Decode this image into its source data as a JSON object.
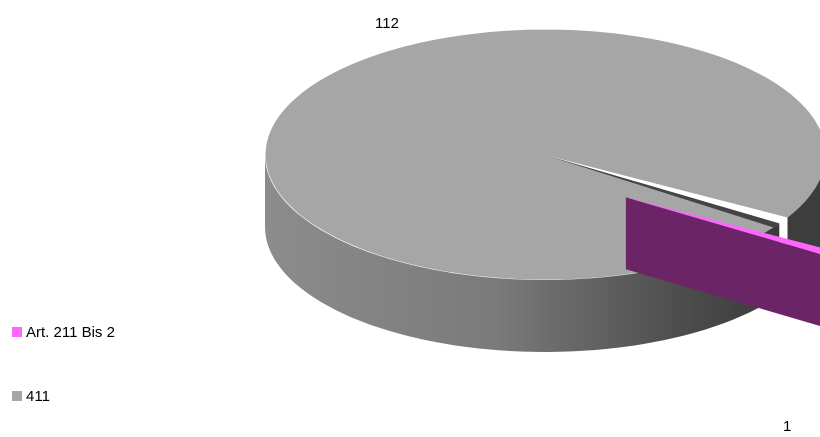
{
  "chart_data": {
    "type": "pie",
    "style": "3d-exploded",
    "slices": [
      {
        "label": "Art. 211 Bis 2",
        "value": 1,
        "color": "#ff66ff",
        "side_color": "#6b2566",
        "exploded": true
      },
      {
        "label": "411",
        "value": 112,
        "color": "#a6a6a6",
        "side_color": "#737373",
        "exploded": false
      }
    ],
    "data_labels": [
      "1",
      "112"
    ],
    "legend": {
      "position": "left",
      "entries": [
        "Art. 211 Bis 2",
        "411"
      ]
    }
  }
}
